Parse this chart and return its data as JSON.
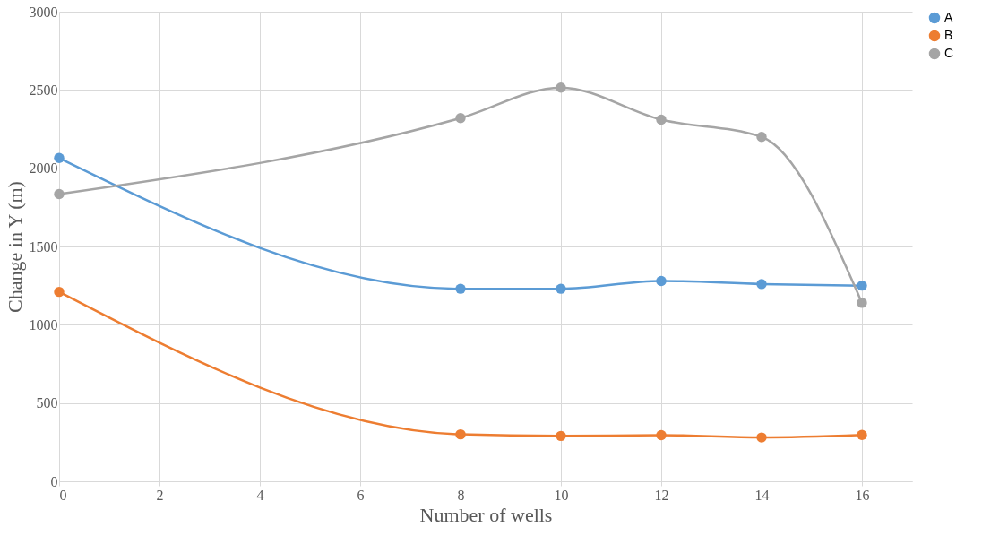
{
  "chart_data": {
    "type": "line",
    "xlabel": "Number of wells",
    "ylabel": "Change in Y (m)",
    "x": [
      0,
      8,
      10,
      12,
      14,
      16
    ],
    "series": [
      {
        "name": "A",
        "color": "#5b9bd5",
        "values": [
          2065,
          1230,
          1230,
          1280,
          1260,
          1250
        ]
      },
      {
        "name": "B",
        "color": "#ed7d31",
        "values": [
          1210,
          300,
          290,
          295,
          280,
          296
        ]
      },
      {
        "name": "C",
        "color": "#a5a5a5",
        "values": [
          1835,
          2320,
          2515,
          2310,
          2200,
          1140
        ]
      }
    ],
    "xlim": [
      0,
      17
    ],
    "xticks": [
      0,
      2,
      4,
      6,
      8,
      10,
      12,
      14,
      16
    ],
    "ylim": [
      0,
      3000
    ],
    "yticks": [
      0,
      500,
      1000,
      1500,
      2000,
      2500,
      3000
    ],
    "grid": true,
    "legend": "right",
    "marker": "circle",
    "line_style": "solid"
  }
}
